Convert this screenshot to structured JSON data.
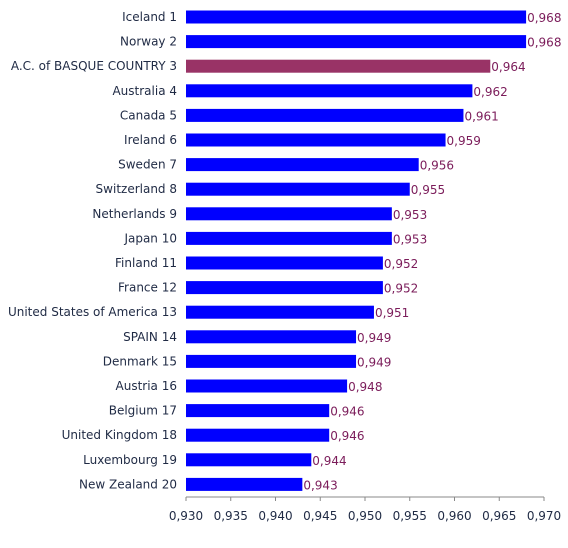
{
  "chart_data": {
    "type": "bar",
    "orientation": "horizontal",
    "categories": [
      "Iceland 1",
      "Norway 2",
      "A.C. of BASQUE COUNTRY 3",
      "Australia 4",
      "Canada 5",
      "Ireland 6",
      "Sweden 7",
      "Switzerland 8",
      "Netherlands 9",
      "Japan 10",
      "Finland 11",
      "France 12",
      "United States of America 13",
      "SPAIN 14",
      "Denmark 15",
      "Austria 16",
      "Belgium 17",
      "United Kingdom 18",
      "Luxembourg 19",
      "New Zealand 20"
    ],
    "values": [
      0.968,
      0.968,
      0.964,
      0.962,
      0.961,
      0.959,
      0.956,
      0.955,
      0.953,
      0.953,
      0.952,
      0.952,
      0.951,
      0.949,
      0.949,
      0.948,
      0.946,
      0.946,
      0.944,
      0.943
    ],
    "value_labels": [
      "0,968",
      "0,968",
      "0,964",
      "0,962",
      "0,961",
      "0,959",
      "0,956",
      "0,955",
      "0,953",
      "0,953",
      "0,952",
      "0,952",
      "0,951",
      "0,949",
      "0,949",
      "0,948",
      "0,946",
      "0,946",
      "0,944",
      "0,943"
    ],
    "highlight_index": 2,
    "xlim": [
      0.93,
      0.97
    ],
    "x_ticks": [
      0.93,
      0.935,
      0.94,
      0.945,
      0.95,
      0.955,
      0.96,
      0.965,
      0.97
    ],
    "x_tick_labels": [
      "0,930",
      "0,935",
      "0,940",
      "0,945",
      "0,950",
      "0,955",
      "0,960",
      "0,965",
      "0,970"
    ],
    "title": "",
    "xlabel": "",
    "ylabel": "",
    "grid": false,
    "legend": false,
    "colors": {
      "bar": "#0000ff",
      "highlight": "#993366",
      "value_label": "#7b1c5a",
      "category_label": "#1f2a44",
      "axis": "#888888"
    }
  }
}
